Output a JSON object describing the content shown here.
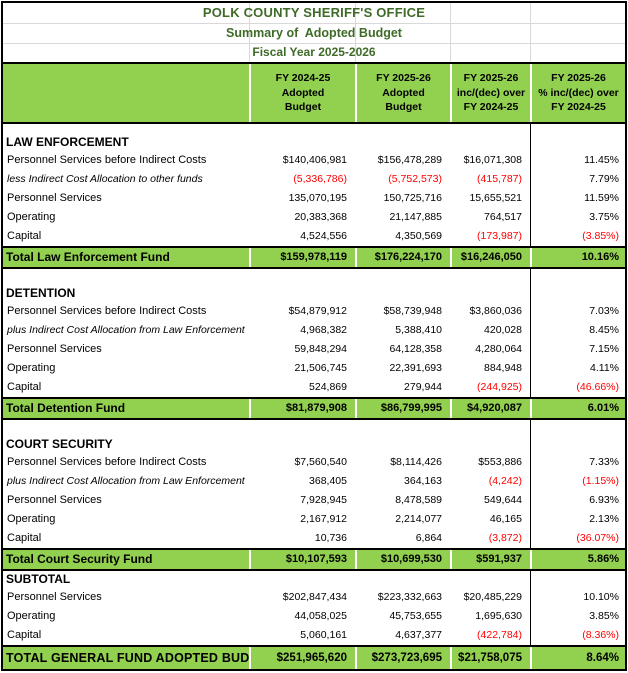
{
  "colors": {
    "band_green": "#92D050",
    "title_green": "#3F6B28",
    "negative_red": "#FF0000"
  },
  "title_block": {
    "title": "POLK COUNTY SHERIFF'S OFFICE",
    "subtitle": "Summary of  Adopted Budget",
    "fiscal_year": "Fiscal Year 2025-2026"
  },
  "column_headers": [
    {
      "lines": [
        "FY 2024-25",
        "Adopted",
        "Budget"
      ]
    },
    {
      "lines": [
        "FY 2025-26",
        "Adopted",
        "Budget"
      ]
    },
    {
      "lines": [
        "FY 2025-26",
        "inc/(dec) over",
        "FY 2024-25"
      ]
    },
    {
      "lines": [
        "FY 2025-26",
        "% inc/(dec) over",
        "FY 2024-25"
      ]
    }
  ],
  "sections": [
    {
      "heading": "LAW ENFORCEMENT",
      "rows": [
        {
          "label": "Personnel Services before Indirect Costs",
          "style": "normal",
          "values": [
            "$140,406,981",
            "$156,478,289",
            "$16,071,308",
            "11.45%"
          ]
        },
        {
          "label": "less Indirect Cost Allocation to other funds",
          "style": "italic",
          "values": [
            "(5,336,786)",
            "(5,752,573)",
            "(415,787)",
            "7.79%"
          ]
        },
        {
          "label": "Personnel Services",
          "style": "normal",
          "values": [
            "135,070,195",
            "150,725,716",
            "15,655,521",
            "11.59%"
          ]
        },
        {
          "label": "Operating",
          "style": "normal",
          "values": [
            "20,383,368",
            "21,147,885",
            "764,517",
            "3.75%"
          ]
        },
        {
          "label": "Capital",
          "style": "normal",
          "values": [
            "4,524,556",
            "4,350,569",
            "(173,987)",
            "(3.85%)"
          ]
        }
      ],
      "total": {
        "label": "Total Law Enforcement Fund",
        "values": [
          "$159,978,119",
          "$176,224,170",
          "$16,246,050",
          "10.16%"
        ]
      },
      "gap_after": true
    },
    {
      "heading": "DETENTION",
      "rows": [
        {
          "label": "Personnel Services before Indirect Costs",
          "style": "normal",
          "values": [
            "$54,879,912",
            "$58,739,948",
            "$3,860,036",
            "7.03%"
          ]
        },
        {
          "label": "plus Indirect Cost Allocation from Law Enforcement",
          "style": "italic",
          "values": [
            "4,968,382",
            "5,388,410",
            "420,028",
            "8.45%"
          ]
        },
        {
          "label": "Personnel Services",
          "style": "normal",
          "values": [
            "59,848,294",
            "64,128,358",
            "4,280,064",
            "7.15%"
          ]
        },
        {
          "label": "Operating",
          "style": "normal",
          "values": [
            "21,506,745",
            "22,391,693",
            "884,948",
            "4.11%"
          ]
        },
        {
          "label": "Capital",
          "style": "normal",
          "values": [
            "524,869",
            "279,944",
            "(244,925)",
            "(46.66%)"
          ]
        }
      ],
      "total": {
        "label": "Total Detention Fund",
        "values": [
          "$81,879,908",
          "$86,799,995",
          "$4,920,087",
          "6.01%"
        ]
      },
      "gap_after": true
    },
    {
      "heading": "COURT SECURITY",
      "rows": [
        {
          "label": "Personnel Services before Indirect Costs",
          "style": "normal",
          "values": [
            "$7,560,540",
            "$8,114,426",
            "$553,886",
            "7.33%"
          ]
        },
        {
          "label": "plus Indirect Cost Allocation from Law Enforcement",
          "style": "italic",
          "values": [
            "368,405",
            "364,163",
            "(4,242)",
            "(1.15%)"
          ]
        },
        {
          "label": "Personnel Services",
          "style": "normal",
          "values": [
            "7,928,945",
            "8,478,589",
            "549,644",
            "6.93%"
          ]
        },
        {
          "label": "Operating",
          "style": "normal",
          "values": [
            "2,167,912",
            "2,214,077",
            "46,165",
            "2.13%"
          ]
        },
        {
          "label": "Capital",
          "style": "normal",
          "values": [
            "10,736",
            "6,864",
            "(3,872)",
            "(36.07%)"
          ]
        }
      ],
      "total": {
        "label": "Total Court Security Fund",
        "values": [
          "$10,107,593",
          "$10,699,530",
          "$591,937",
          "5.86%"
        ]
      },
      "gap_after": false
    },
    {
      "heading": "SUBTOTAL",
      "rows": [
        {
          "label": "Personnel Services",
          "style": "normal",
          "values": [
            "$202,847,434",
            "$223,332,663",
            "$20,485,229",
            "10.10%"
          ]
        },
        {
          "label": "Operating",
          "style": "normal",
          "values": [
            "44,058,025",
            "45,753,655",
            "1,695,630",
            "3.85%"
          ]
        },
        {
          "label": "Capital",
          "style": "normal",
          "values": [
            "5,060,161",
            "4,637,377",
            "(422,784)",
            "(8.36%)"
          ]
        }
      ],
      "total": {
        "label": "TOTAL GENERAL FUND ADOPTED BUDGET",
        "values": [
          "$251,965,620",
          "$273,723,695",
          "$21,758,075",
          "8.64%"
        ],
        "final": true
      },
      "gap_after": false
    }
  ]
}
